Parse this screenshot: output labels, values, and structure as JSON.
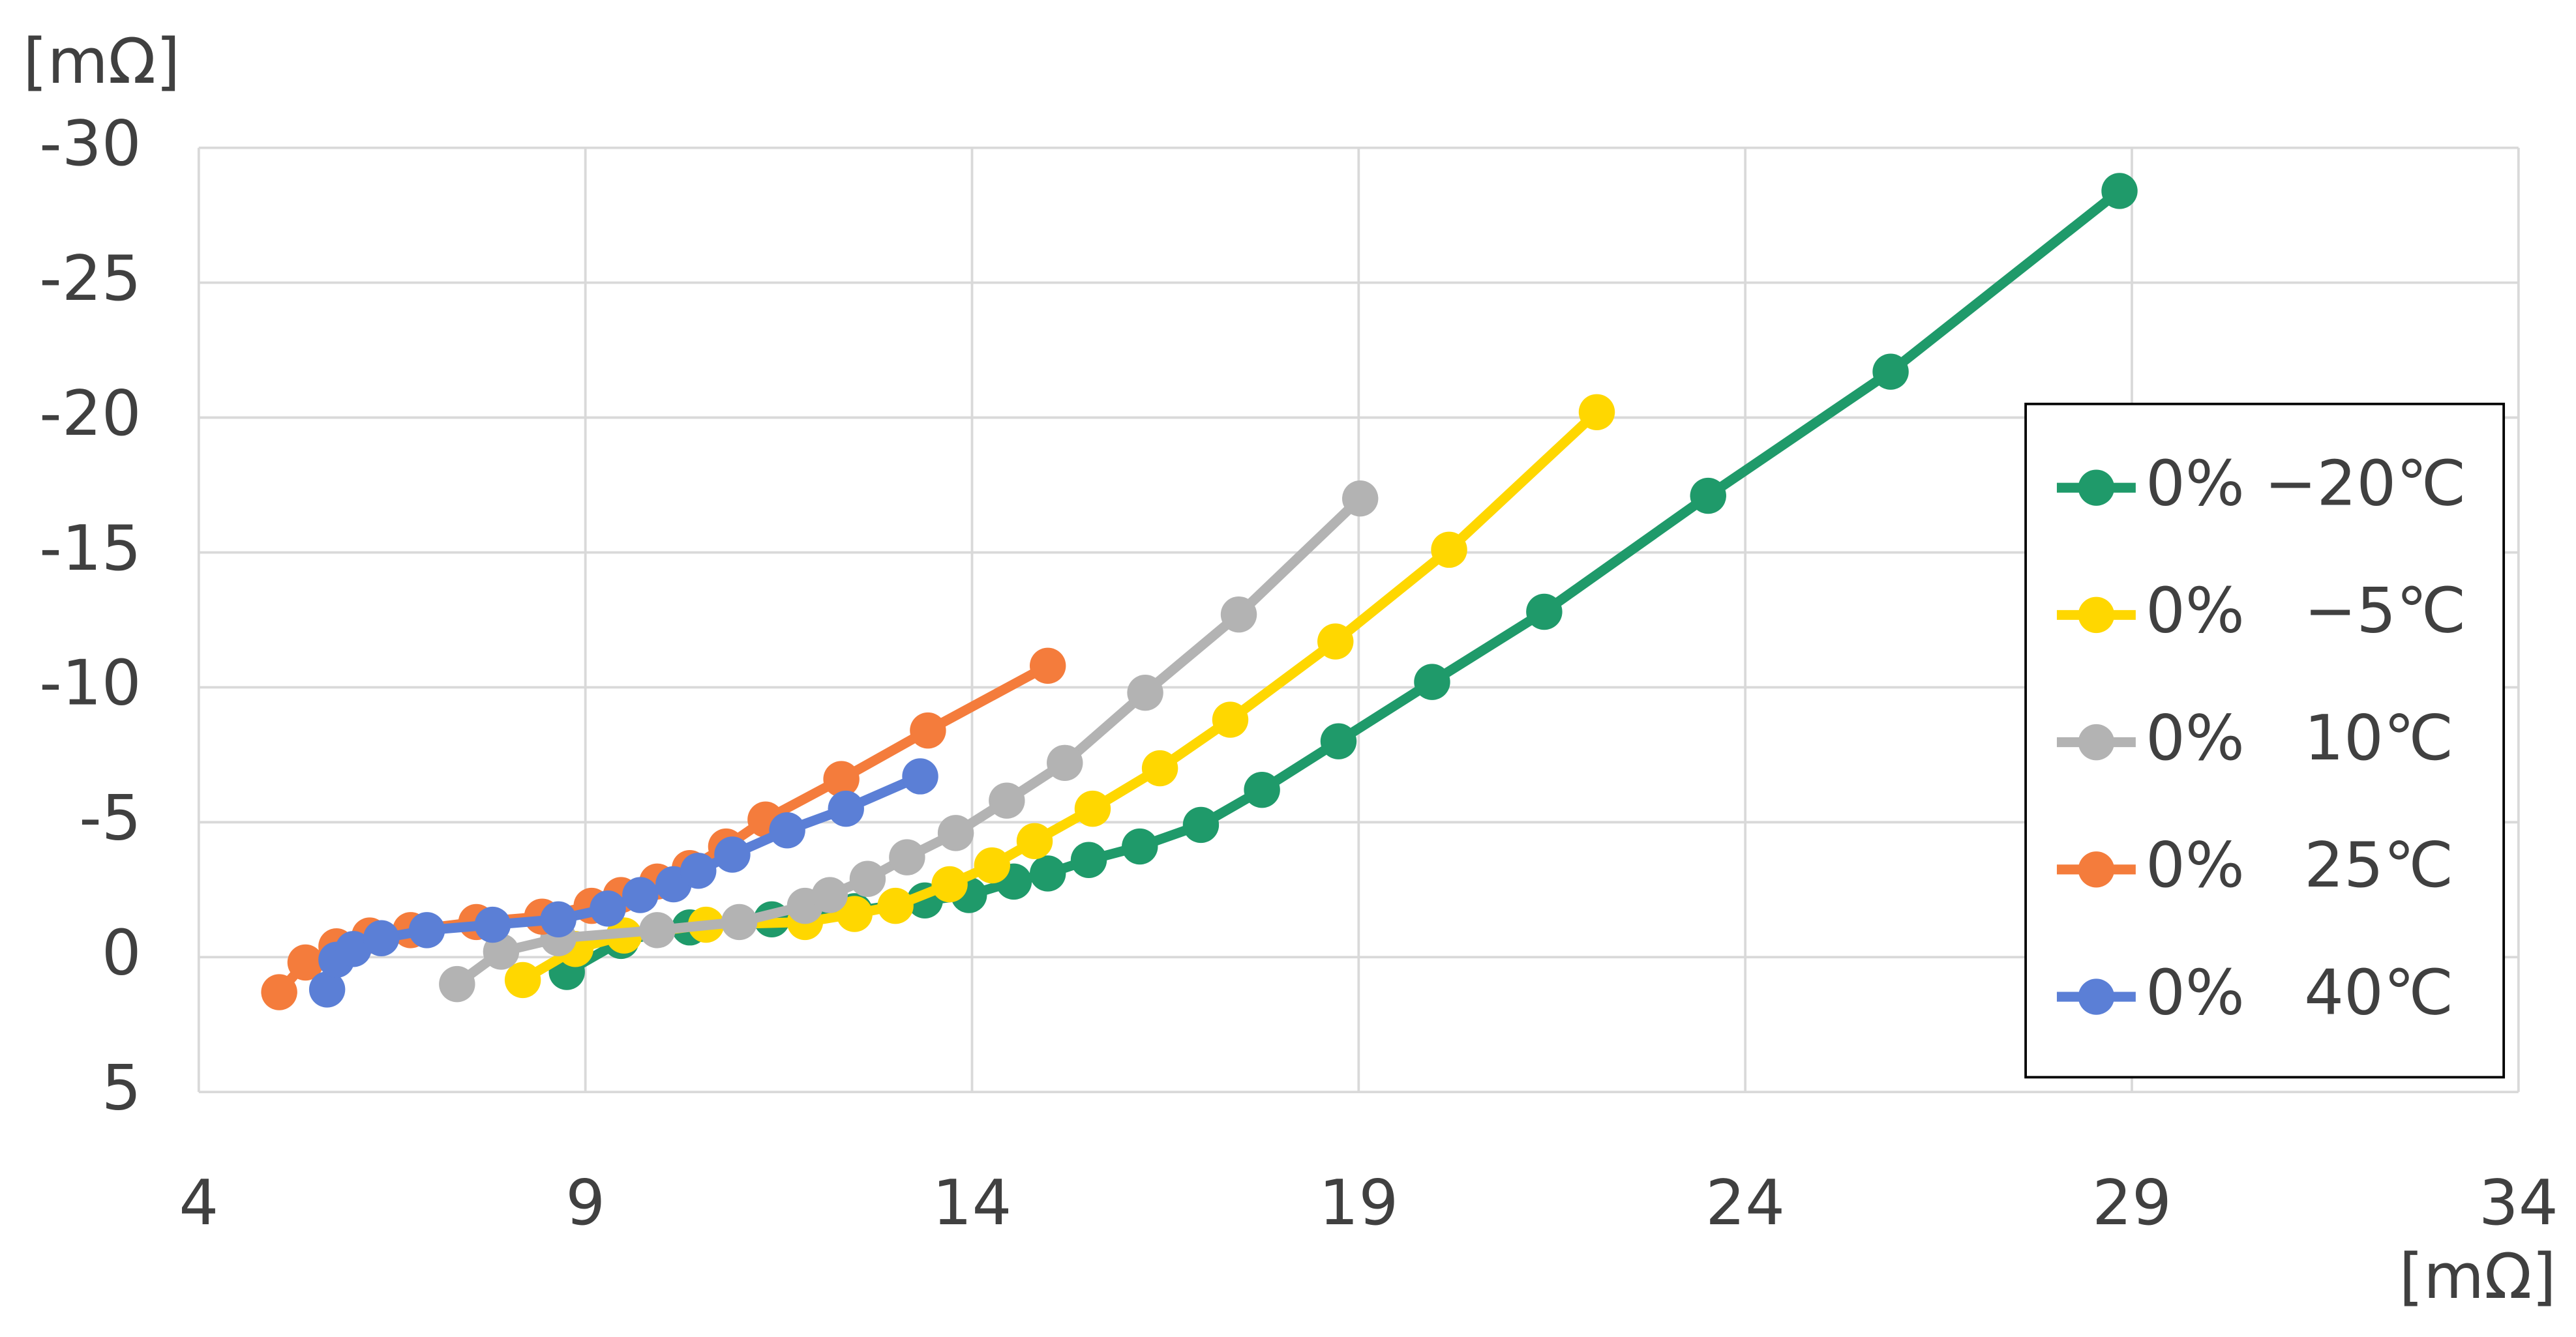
{
  "chart_data": {
    "type": "line",
    "y_label": "[mΩ]",
    "x_label": "[mΩ]",
    "xlim": [
      4,
      34
    ],
    "xticks": [
      4,
      9,
      14,
      19,
      24,
      29,
      34
    ],
    "ylim": [
      5,
      -30
    ],
    "yticks": [
      5,
      0,
      -5,
      -10,
      -15,
      -20,
      -25,
      -30
    ],
    "grid": true,
    "legend": "right",
    "series": [
      {
        "name": "0% −20℃",
        "color": "#1f9a6a",
        "x": [
          8.76,
          9.46,
          10.35,
          11.41,
          12.48,
          13.39,
          13.96,
          14.54,
          14.98,
          15.51,
          16.17,
          16.96,
          17.75,
          18.74,
          19.95,
          21.4,
          23.52,
          25.88,
          28.84
        ],
        "values": [
          0.55,
          -0.6,
          -1.1,
          -1.4,
          -1.7,
          -2.1,
          -2.3,
          -2.8,
          -3.1,
          -3.6,
          -4.1,
          -4.9,
          -6.2,
          -8.0,
          -10.2,
          -12.8,
          -17.1,
          -21.7,
          -28.4
        ]
      },
      {
        "name": "0%   −5℃",
        "color": "#ffd700",
        "x": [
          8.19,
          8.87,
          9.5,
          10.56,
          11.84,
          12.48,
          13.01,
          13.71,
          14.26,
          14.81,
          15.56,
          16.43,
          17.34,
          18.7,
          20.17,
          22.08
        ],
        "values": [
          0.85,
          -0.3,
          -0.8,
          -1.2,
          -1.3,
          -1.6,
          -1.9,
          -2.7,
          -3.4,
          -4.3,
          -5.5,
          -7.0,
          -8.8,
          -11.7,
          -15.1,
          -20.2
        ]
      },
      {
        "name": "0%   10℃",
        "color": "#b3b3b3",
        "x": [
          7.34,
          7.91,
          8.65,
          9.93,
          10.99,
          11.84,
          12.16,
          12.65,
          13.16,
          13.79,
          14.45,
          15.2,
          16.24,
          17.45,
          19.02
        ],
        "values": [
          1.0,
          -0.2,
          -0.7,
          -1.0,
          -1.3,
          -1.9,
          -2.3,
          -2.9,
          -3.7,
          -4.6,
          -5.8,
          -7.2,
          -9.8,
          -12.7,
          -17.0
        ]
      },
      {
        "name": "0%   25℃",
        "color": "#f47c3c",
        "x": [
          5.04,
          5.38,
          5.78,
          6.21,
          6.74,
          7.59,
          8.44,
          9.08,
          9.46,
          9.93,
          10.35,
          10.82,
          11.33,
          12.31,
          13.43,
          14.98
        ],
        "values": [
          1.3,
          0.2,
          -0.4,
          -0.8,
          -1.0,
          -1.3,
          -1.5,
          -1.9,
          -2.3,
          -2.8,
          -3.3,
          -4.1,
          -5.1,
          -6.6,
          -8.4,
          -10.8
        ]
      },
      {
        "name": "0%   40℃",
        "color": "#5b7fd6",
        "x": [
          5.66,
          5.78,
          6.0,
          6.36,
          6.95,
          7.8,
          8.65,
          9.29,
          9.71,
          10.14,
          10.46,
          10.9,
          11.61,
          12.37,
          13.33
        ],
        "values": [
          1.2,
          0.1,
          -0.3,
          -0.7,
          -1.0,
          -1.2,
          -1.4,
          -1.8,
          -2.3,
          -2.7,
          -3.2,
          -3.8,
          -4.7,
          -5.5,
          -6.7
        ]
      }
    ]
  }
}
